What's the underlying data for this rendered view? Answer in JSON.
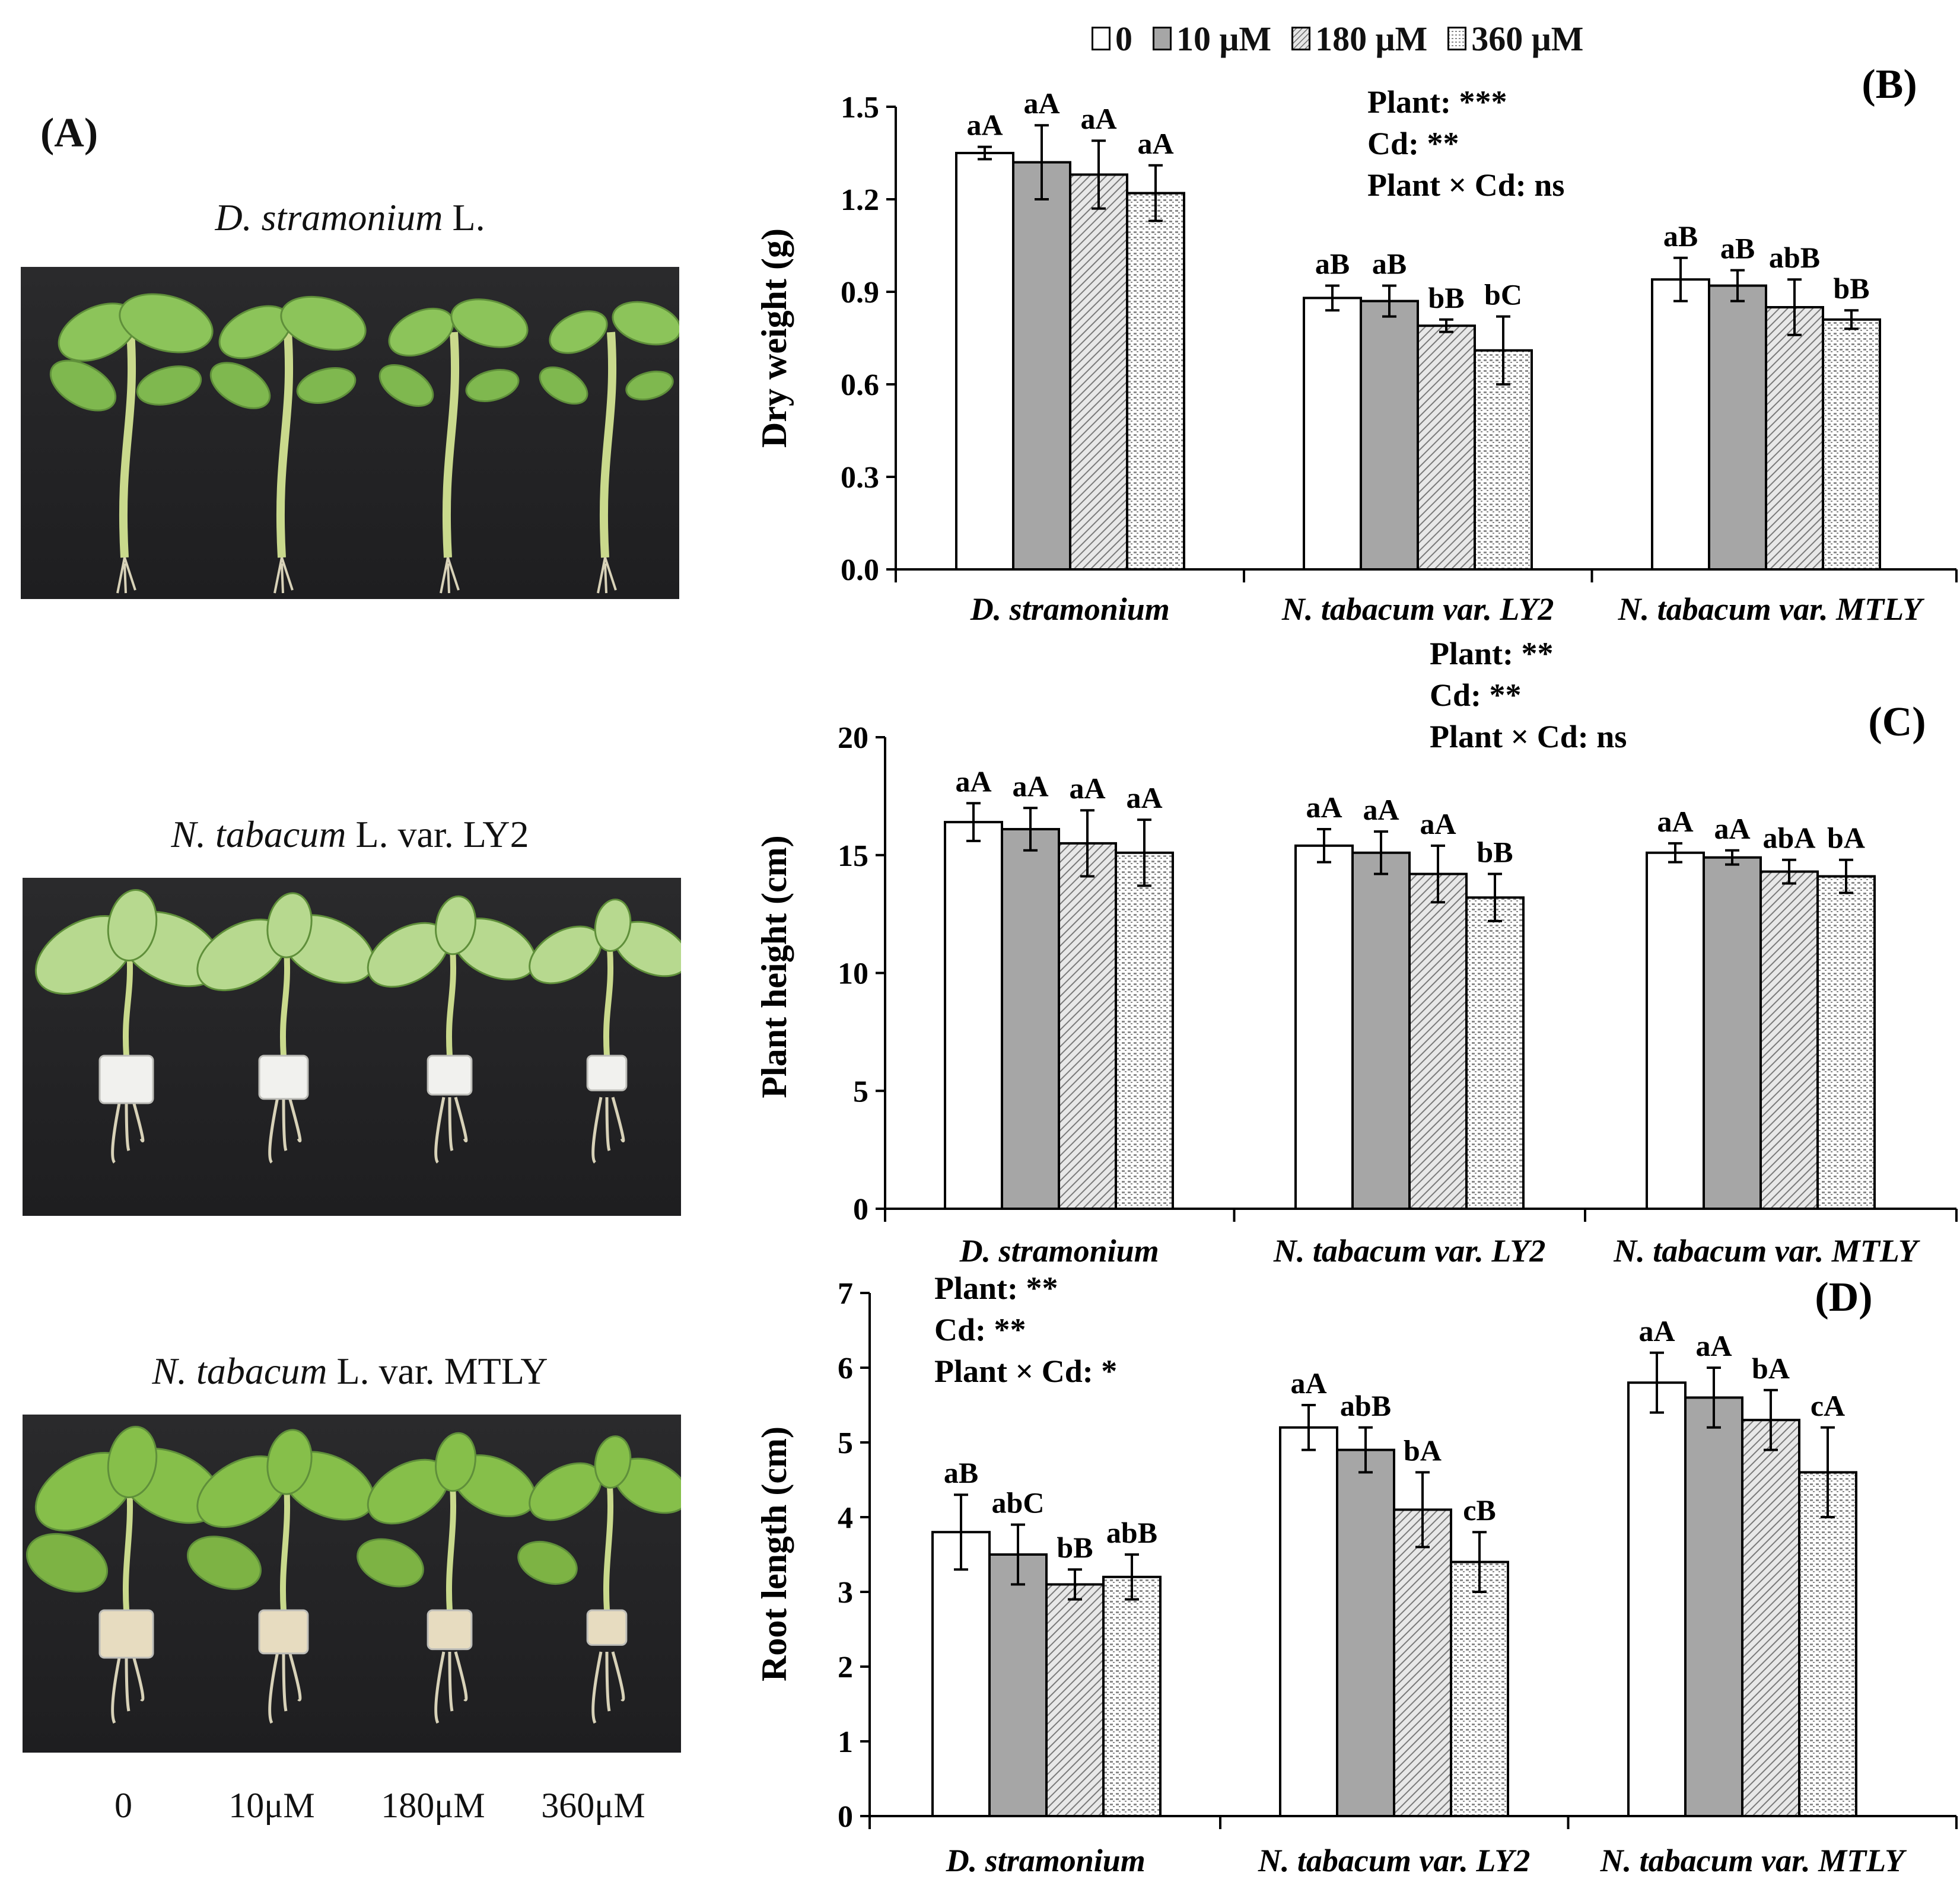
{
  "panel_a": {
    "label": "(A)",
    "photos": [
      {
        "title_italic": "D. stramonium",
        "title_rest": " L."
      },
      {
        "title_italic": "N. tabacum",
        "title_rest": " L. var. LY2"
      },
      {
        "title_italic": "N. tabacum",
        "title_rest": " L. var. MTLY"
      }
    ],
    "dose_labels": [
      "0",
      "10μM",
      "180μM",
      "360μM"
    ]
  },
  "legend": [
    "0",
    "10 μM",
    "180 μM",
    "360 μM"
  ],
  "colors": {
    "bar_0": "#ffffff",
    "bar_10": "#a6a6a6",
    "bar_180_hatch": "#7a7a7a",
    "bar_360_dots": "#8a8a8a",
    "axis": "#000000",
    "photo_background": "#1e1e20",
    "leaf": "#8cc45a",
    "stem": "#c9d98c",
    "root": "#d8d2b8",
    "plug": "#f1f1ee"
  },
  "chart_data": [
    {
      "type": "bar",
      "panel": "(B)",
      "ylabel": "Dry weight (g)",
      "ylim": [
        0,
        1.5
      ],
      "yticks": [
        0.0,
        0.3,
        0.6,
        0.9,
        1.2,
        1.5
      ],
      "ytick_labels": [
        "0.0",
        "0.3",
        "0.6",
        "0.9",
        "1.2",
        "1.5"
      ],
      "categories": [
        "D. stramonium",
        "N. tabacum var. LY2",
        "N. tabacum var. MTLY"
      ],
      "series": [
        {
          "name": "0",
          "values": [
            1.35,
            0.88,
            0.94
          ],
          "errors": [
            0.02,
            0.04,
            0.07
          ]
        },
        {
          "name": "10 μM",
          "values": [
            1.32,
            0.87,
            0.92
          ],
          "errors": [
            0.12,
            0.05,
            0.05
          ]
        },
        {
          "name": "180 μM",
          "values": [
            1.28,
            0.79,
            0.85
          ],
          "errors": [
            0.11,
            0.02,
            0.09
          ]
        },
        {
          "name": "360 μM",
          "values": [
            1.22,
            0.71,
            0.81
          ],
          "errors": [
            0.09,
            0.11,
            0.03
          ]
        }
      ],
      "sig_letters": [
        [
          "aA",
          "aA",
          "aA",
          "aA"
        ],
        [
          "aB",
          "aB",
          "bB",
          "bC"
        ],
        [
          "aB",
          "aB",
          "abB",
          "bB"
        ]
      ],
      "stats": [
        "Plant: ***",
        "Cd: **",
        "Plant × Cd: ns"
      ]
    },
    {
      "type": "bar",
      "panel": "(C)",
      "ylabel": "Plant height (cm)",
      "ylim": [
        0,
        20
      ],
      "yticks": [
        0,
        5,
        10,
        15,
        20
      ],
      "ytick_labels": [
        "0",
        "5",
        "10",
        "15",
        "20"
      ],
      "categories": [
        "D. stramonium",
        "N. tabacum var. LY2",
        "N. tabacum var. MTLY"
      ],
      "series": [
        {
          "name": "0",
          "values": [
            16.4,
            15.4,
            15.1
          ],
          "errors": [
            0.8,
            0.7,
            0.4
          ]
        },
        {
          "name": "10 μM",
          "values": [
            16.1,
            15.1,
            14.9
          ],
          "errors": [
            0.9,
            0.9,
            0.3
          ]
        },
        {
          "name": "180 μM",
          "values": [
            15.5,
            14.2,
            14.3
          ],
          "errors": [
            1.4,
            1.2,
            0.5
          ]
        },
        {
          "name": "360 μM",
          "values": [
            15.1,
            13.2,
            14.1
          ],
          "errors": [
            1.4,
            1.0,
            0.7
          ]
        }
      ],
      "sig_letters": [
        [
          "aA",
          "aA",
          "aA",
          "aA"
        ],
        [
          "aA",
          "aA",
          "aA",
          "bB"
        ],
        [
          "aA",
          "aA",
          "abA",
          "bA"
        ]
      ],
      "stats": [
        "Plant: **",
        "Cd: **",
        "Plant × Cd: ns"
      ]
    },
    {
      "type": "bar",
      "panel": "(D)",
      "ylabel": "Root length (cm)",
      "ylim": [
        0,
        7
      ],
      "yticks": [
        0,
        1,
        2,
        3,
        4,
        5,
        6,
        7
      ],
      "ytick_labels": [
        "0",
        "1",
        "2",
        "3",
        "4",
        "5",
        "6",
        "7"
      ],
      "categories": [
        "D. stramonium",
        "N. tabacum var. LY2",
        "N. tabacum var. MTLY"
      ],
      "series": [
        {
          "name": "0",
          "values": [
            3.8,
            5.2,
            5.8
          ],
          "errors": [
            0.5,
            0.3,
            0.4
          ]
        },
        {
          "name": "10 μM",
          "values": [
            3.5,
            4.9,
            5.6
          ],
          "errors": [
            0.4,
            0.3,
            0.4
          ]
        },
        {
          "name": "180 μM",
          "values": [
            3.1,
            4.1,
            5.3
          ],
          "errors": [
            0.2,
            0.5,
            0.4
          ]
        },
        {
          "name": "360 μM",
          "values": [
            3.2,
            3.4,
            4.6
          ],
          "errors": [
            0.3,
            0.4,
            0.6
          ]
        }
      ],
      "sig_letters": [
        [
          "aB",
          "abC",
          "bB",
          "abB"
        ],
        [
          "aA",
          "abB",
          "bA",
          "cB"
        ],
        [
          "aA",
          "aA",
          "bA",
          "cA"
        ]
      ],
      "stats": [
        "Plant: **",
        "Cd: **",
        "Plant × Cd: *"
      ]
    }
  ]
}
